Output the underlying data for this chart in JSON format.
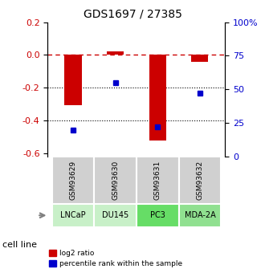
{
  "title": "GDS1697 / 27385",
  "samples": [
    "GSM93629",
    "GSM93630",
    "GSM93631",
    "GSM93632"
  ],
  "cell_lines": [
    "LNCaP",
    "DU145",
    "PC3",
    "MDA-2A"
  ],
  "cell_line_colors": [
    "#c8f0c8",
    "#c8f0c8",
    "#66dd66",
    "#90e090"
  ],
  "log2_ratio": [
    -0.305,
    0.02,
    -0.52,
    -0.04
  ],
  "percentile_rank": [
    20,
    55,
    22,
    47
  ],
  "bar_color": "#cc0000",
  "dot_color": "#0000cc",
  "left_ylim": [
    0.2,
    -0.62
  ],
  "right_ylim": [
    100,
    0
  ],
  "left_yticks": [
    0.2,
    0.0,
    -0.2,
    -0.4,
    -0.6
  ],
  "right_yticks": [
    100,
    75,
    50,
    25,
    0
  ],
  "right_ytick_labels": [
    "100%",
    "75",
    "50",
    "25",
    "0"
  ],
  "hline_zero_color": "#cc0000",
  "hline_dotted_values": [
    -0.2,
    -0.4
  ],
  "legend_items": [
    "log2 ratio",
    "percentile rank within the sample"
  ],
  "legend_colors": [
    "#cc0000",
    "#0000cc"
  ],
  "cell_line_label": "cell line",
  "bar_width": 0.4
}
